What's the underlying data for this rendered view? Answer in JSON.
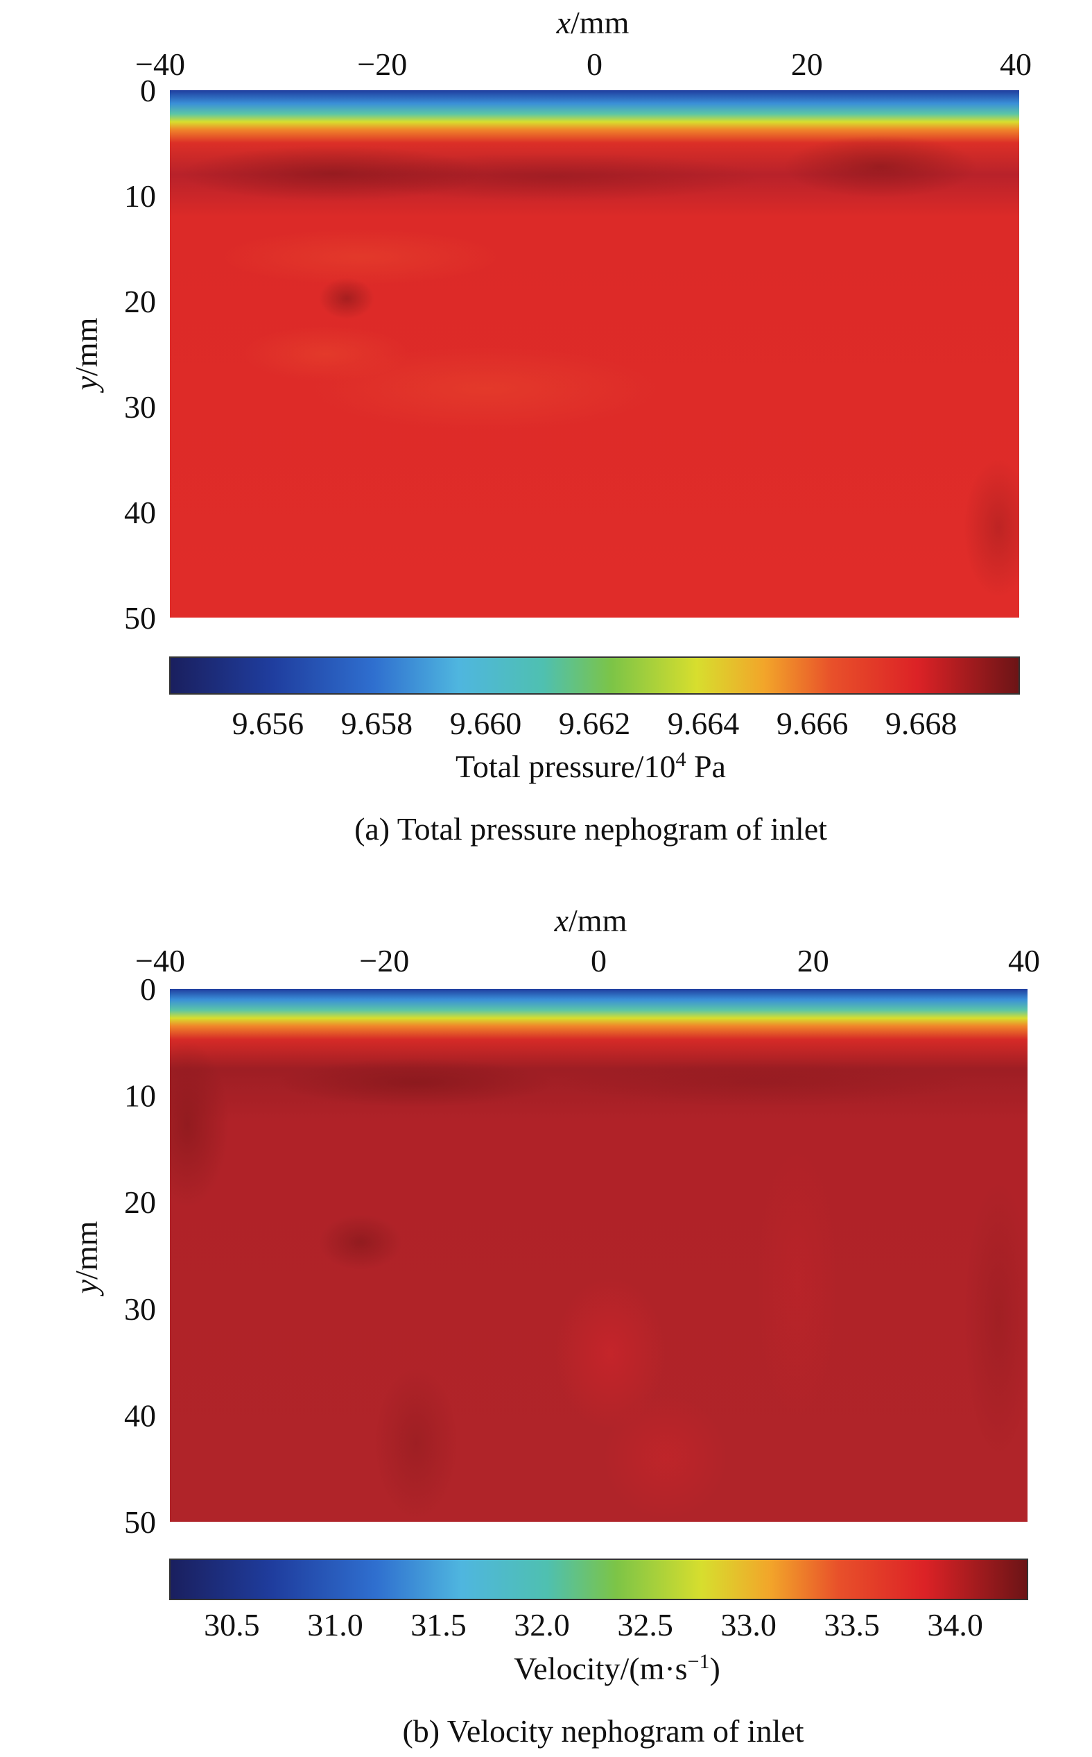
{
  "chart_data": [
    {
      "type": "heatmap",
      "panel": "a",
      "caption": "(a) Total pressure nephogram of inlet",
      "xlabel_var": "x",
      "xlabel_unit": "/mm",
      "ylabel_var": "y",
      "ylabel_unit": "/mm",
      "xlim": [
        -40,
        40
      ],
      "ylim": [
        0,
        50
      ],
      "x_ticks": [
        "−40",
        "−20",
        "0",
        "20",
        "40"
      ],
      "x_tick_values": [
        -40,
        -20,
        0,
        20,
        40
      ],
      "y_ticks": [
        "0",
        "10",
        "20",
        "30",
        "40",
        "50"
      ],
      "y_tick_values": [
        0,
        10,
        20,
        30,
        40,
        50
      ],
      "y_inverted": true,
      "x_axis_position": "top",
      "colorbar": {
        "label_prefix": "Total pressure/10",
        "label_exp": "4",
        "label_suffix": " Pa",
        "range": [
          9.6542,
          9.6698
        ],
        "ticks": [
          "9.656",
          "9.658",
          "9.660",
          "9.662",
          "9.664",
          "9.666",
          "9.668"
        ],
        "tick_values": [
          9.656,
          9.658,
          9.66,
          9.662,
          9.664,
          9.666,
          9.668
        ],
        "colormap": "jet"
      },
      "field_description": [
        {
          "y": 0,
          "value": 9.6548
        },
        {
          "y": 1.5,
          "value": 9.6585
        },
        {
          "y": 2.5,
          "value": 9.6625
        },
        {
          "y": 3.5,
          "value": 9.6655
        },
        {
          "y": 5,
          "value": 9.6679
        },
        {
          "y": 8,
          "value": 9.6689
        },
        {
          "y": 12,
          "value": 9.6681
        },
        {
          "y": 50,
          "value": 9.6679
        }
      ]
    },
    {
      "type": "heatmap",
      "panel": "b",
      "caption": "(b) Velocity nephogram of inlet",
      "xlabel_var": "x",
      "xlabel_unit": "/mm",
      "ylabel_var": "y",
      "ylabel_unit": "/mm",
      "xlim": [
        -40,
        40
      ],
      "ylim": [
        0,
        50
      ],
      "x_ticks": [
        "−40",
        "−20",
        "0",
        "20",
        "40"
      ],
      "x_tick_values": [
        -40,
        -20,
        0,
        20,
        40
      ],
      "y_ticks": [
        "0",
        "10",
        "20",
        "30",
        "40",
        "50"
      ],
      "y_tick_values": [
        0,
        10,
        20,
        30,
        40,
        50
      ],
      "y_inverted": true,
      "x_axis_position": "top",
      "colorbar": {
        "label_prefix": "Velocity/(m·s",
        "label_exp": "−1",
        "label_suffix": ")",
        "range": [
          30.2,
          34.35
        ],
        "ticks": [
          "30.5",
          "31.0",
          "31.5",
          "32.0",
          "32.5",
          "33.0",
          "33.5",
          "34.0"
        ],
        "tick_values": [
          30.5,
          31.0,
          31.5,
          32.0,
          32.5,
          33.0,
          33.5,
          34.0
        ],
        "colormap": "jet"
      },
      "field_description": [
        {
          "y": 0,
          "value": 30.4
        },
        {
          "y": 1.5,
          "value": 31.3
        },
        {
          "y": 2.5,
          "value": 32.3
        },
        {
          "y": 3.5,
          "value": 33.2
        },
        {
          "y": 5,
          "value": 33.9
        },
        {
          "y": 8,
          "value": 34.2
        },
        {
          "y": 12,
          "value": 34.1
        },
        {
          "y": 50,
          "value": 34.05
        }
      ]
    }
  ]
}
